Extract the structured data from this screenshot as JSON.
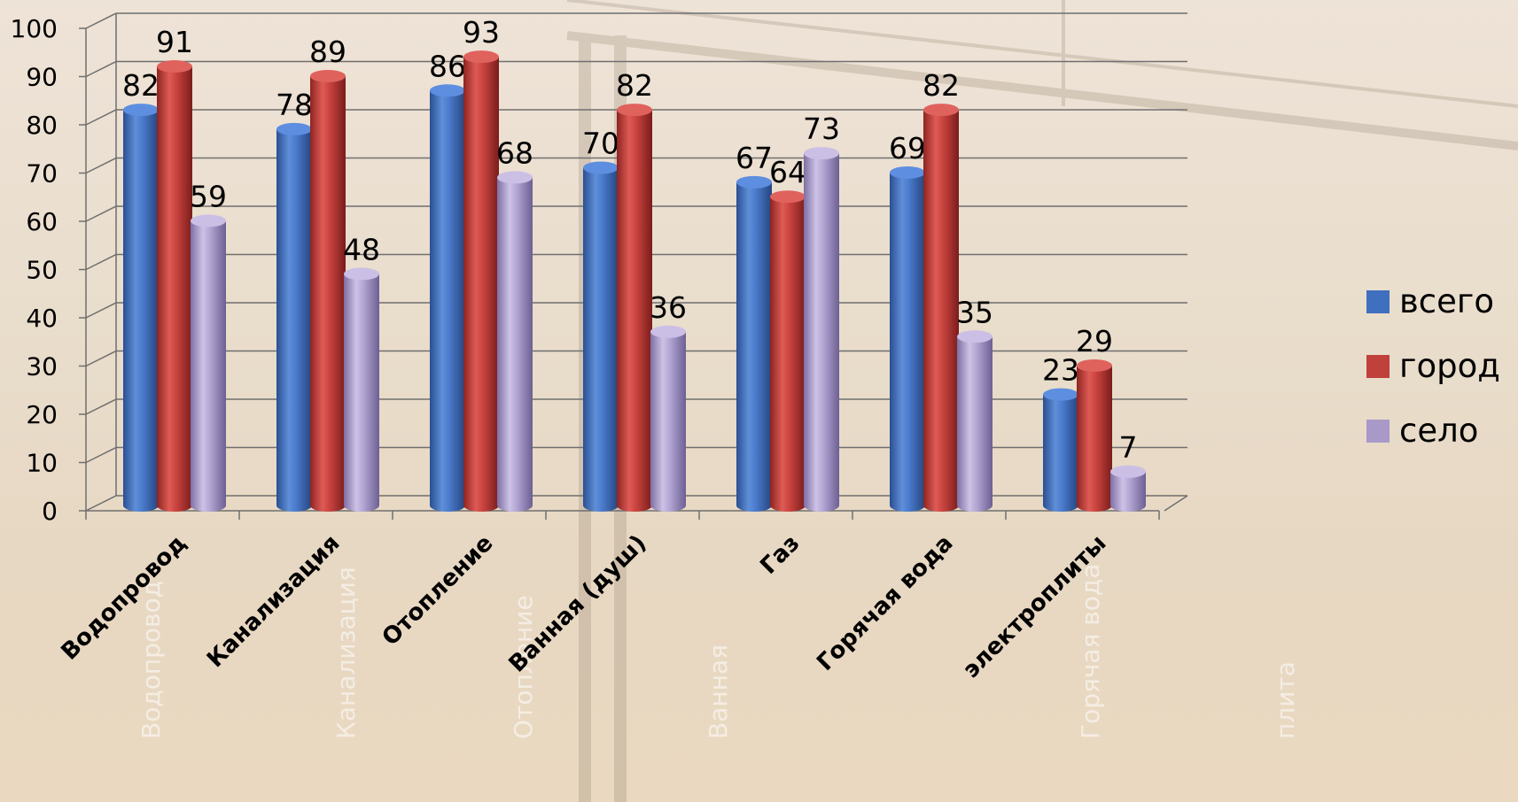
{
  "chart_data": {
    "type": "bar",
    "title": "",
    "xlabel": "",
    "ylabel": "",
    "ylim": [
      0,
      100
    ],
    "yticks": [
      0,
      10,
      20,
      30,
      40,
      50,
      60,
      70,
      80,
      90,
      100
    ],
    "categories": [
      "Водопровод",
      "Канализация",
      "Отопление",
      "Ванная (душ)",
      "Газ",
      "Горячая вода",
      "электроплиты"
    ],
    "series": [
      {
        "name": "всего",
        "color": "#3f6fbf",
        "values": [
          82,
          78,
          86,
          70,
          67,
          69,
          23
        ]
      },
      {
        "name": "город",
        "color": "#c0403c",
        "values": [
          91,
          89,
          93,
          82,
          64,
          82,
          29
        ]
      },
      {
        "name": "село",
        "color": "#a899c8",
        "values": [
          59,
          48,
          68,
          36,
          73,
          35,
          7
        ]
      }
    ],
    "grid": true,
    "legend_position": "right",
    "style": "3d-cylinder"
  },
  "background_text": [
    "Водопровод",
    "Канализация",
    "Отопление",
    "Ванная",
    "Горячая вода",
    "плита"
  ]
}
